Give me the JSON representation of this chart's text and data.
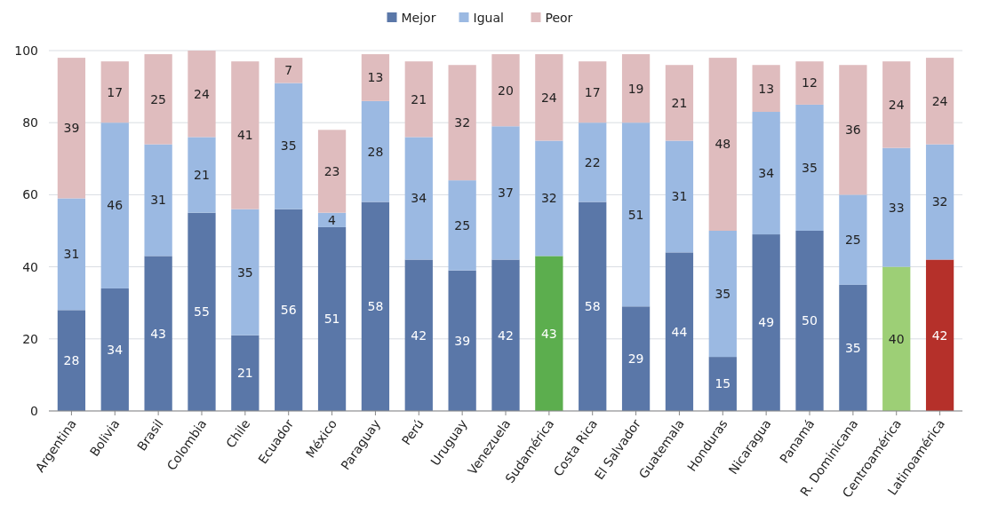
{
  "chart_data": {
    "type": "bar",
    "stacked": true,
    "categories": [
      "Argentina",
      "Bolivia",
      "Brasil",
      "Colombia",
      "Chile",
      "Ecuador",
      "México",
      "Paraguay",
      "Perú",
      "Uruguay",
      "Venezuela",
      "Sudamérica",
      "Costa Rica",
      "El Salvador",
      "Guatemala",
      "Honduras",
      "Nicaragua",
      "Panamá",
      "R. Dominicana",
      "Centroamérica",
      "Latinoamérica"
    ],
    "series": [
      {
        "name": "Mejor",
        "color": "#5a77a8",
        "colors": [
          "#5a77a8",
          "#5a77a8",
          "#5a77a8",
          "#5a77a8",
          "#5a77a8",
          "#5a77a8",
          "#5a77a8",
          "#5a77a8",
          "#5a77a8",
          "#5a77a8",
          "#5a77a8",
          "#5cae4e",
          "#5a77a8",
          "#5a77a8",
          "#5a77a8",
          "#5a77a8",
          "#5a77a8",
          "#5a77a8",
          "#5a77a8",
          "#9dcf76",
          "#b5302a"
        ],
        "values": [
          28,
          34,
          43,
          55,
          21,
          56,
          51,
          58,
          42,
          39,
          42,
          43,
          58,
          29,
          44,
          15,
          49,
          50,
          35,
          40,
          42
        ]
      },
      {
        "name": "Igual",
        "color": "#9bb9e2",
        "values": [
          31,
          46,
          31,
          21,
          35,
          35,
          4,
          28,
          34,
          25,
          37,
          32,
          22,
          51,
          31,
          35,
          34,
          35,
          25,
          33,
          32
        ]
      },
      {
        "name": "Peor",
        "color": "#dfbcbe",
        "values": [
          39,
          17,
          25,
          24,
          41,
          7,
          23,
          13,
          21,
          32,
          20,
          24,
          17,
          19,
          21,
          48,
          13,
          12,
          36,
          24,
          24
        ]
      }
    ],
    "ylim": [
      0,
      100
    ],
    "yticks": [
      0,
      20,
      40,
      60,
      80,
      100
    ],
    "grid": "y",
    "legend": "top",
    "data_labels": true
  }
}
